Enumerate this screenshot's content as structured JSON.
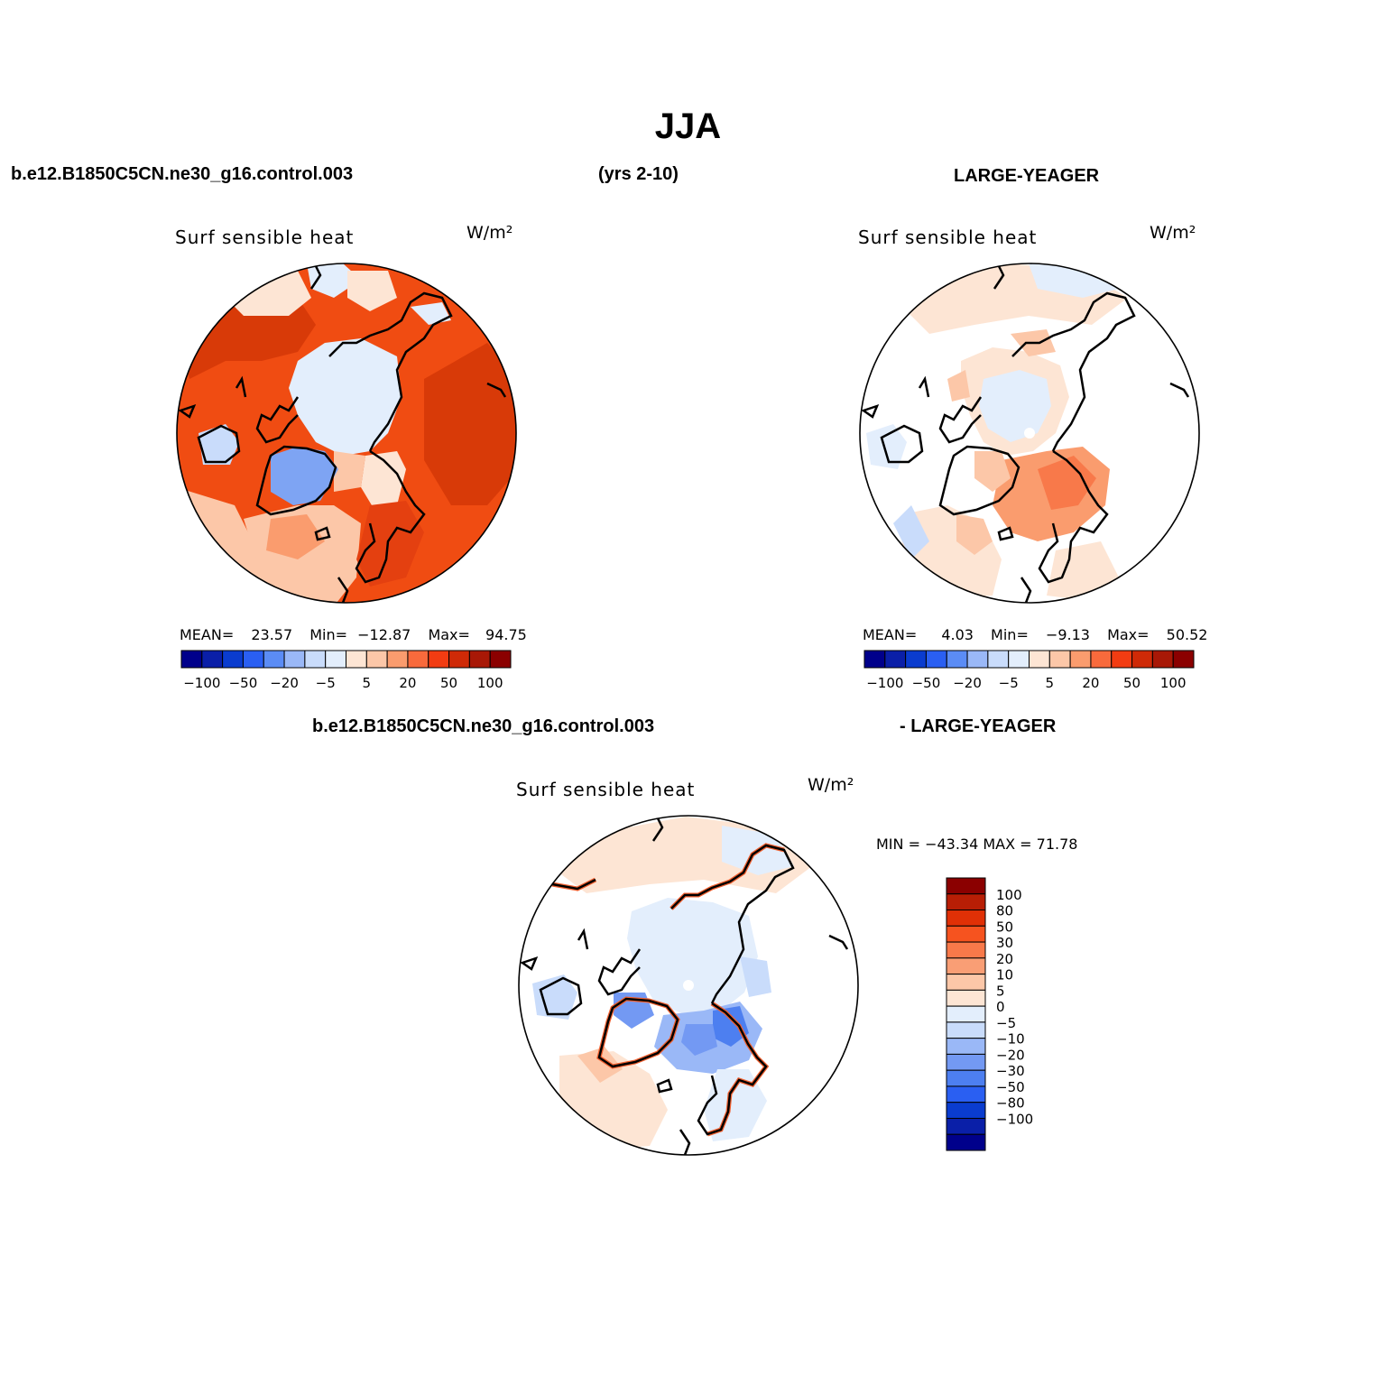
{
  "title": "JJA",
  "header_left": "b.e12.B1850C5CN.ne30_g16.control.003",
  "header_center": "(yrs 2-10)",
  "header_right": "LARGE-YEAGER",
  "diff_header_left": "b.e12.B1850C5CN.ne30_g16.control.003",
  "diff_header_right": "- LARGE-YEAGER",
  "panels": [
    {
      "variable": "Surf sensible heat",
      "units": "W/m²",
      "stats": {
        "mean_label": "MEAN=",
        "mean": "23.57",
        "min_label": "Min=",
        "min": "−12.87",
        "max_label": "Max=",
        "max": "94.75"
      }
    },
    {
      "variable": "Surf sensible heat",
      "units": "W/m²",
      "stats": {
        "mean_label": "MEAN=",
        "mean": "4.03",
        "min_label": "Min=",
        "min": "−9.13",
        "max_label": "Max=",
        "max": "50.52"
      }
    },
    {
      "variable": "Surf sensible heat",
      "units": "W/m²",
      "stats_text": "MIN = −43.34 MAX =  71.78"
    }
  ],
  "colorbar_horizontal": {
    "colors": [
      "#00008b",
      "#0a1fa8",
      "#0a3ccf",
      "#2a5ff2",
      "#5b8cf5",
      "#9ab8f7",
      "#c9dcfb",
      "#e3eefc",
      "#fde5d4",
      "#fcc7a8",
      "#fa9c6e",
      "#f86a3c",
      "#f23c12",
      "#cf2a07",
      "#a81806",
      "#8b0000"
    ],
    "labels": [
      "−100",
      "−50",
      "−20",
      "−5",
      "5",
      "20",
      "50",
      "100"
    ]
  },
  "colorbar_vertical": {
    "colors": [
      "#8b0000",
      "#b81e05",
      "#e03006",
      "#f6531f",
      "#f8794a",
      "#f99e75",
      "#fcc7a8",
      "#fde5d4",
      "#e3eefc",
      "#c9dcfb",
      "#9ab8f7",
      "#7399f3",
      "#4d7ff0",
      "#2a5ff2",
      "#0a3ccf",
      "#0a1fa8",
      "#00008b"
    ],
    "labels": [
      "100",
      "80",
      "50",
      "30",
      "20",
      "10",
      "5",
      "0",
      "−5",
      "−10",
      "−20",
      "−30",
      "−50",
      "−80",
      "−100"
    ]
  }
}
